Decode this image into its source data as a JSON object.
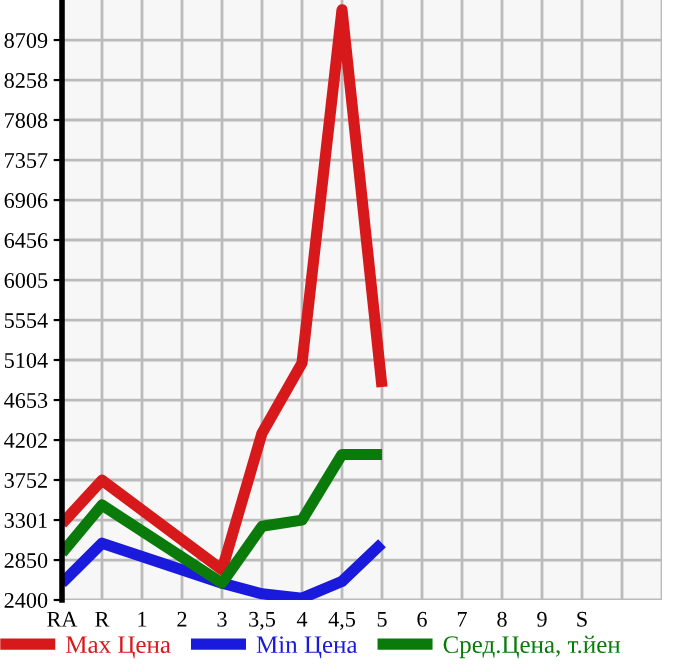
{
  "chart_data": {
    "type": "line",
    "categories": [
      "RA",
      "R",
      "1",
      "2",
      "3",
      "3,5",
      "4",
      "4,5",
      "5",
      "6",
      "7",
      "8",
      "9",
      "S",
      null,
      null
    ],
    "series": [
      {
        "name": "Max Цена",
        "color": "#d7191c",
        "values": [
          3260,
          3750,
          null,
          null,
          2740,
          4280,
          5070,
          9050,
          4800,
          null,
          null,
          null,
          null,
          null,
          null,
          null
        ]
      },
      {
        "name": "Min Цена",
        "color": "#1a1adc",
        "values": [
          2590,
          3040,
          null,
          null,
          2590,
          2470,
          2420,
          2610,
          3040,
          null,
          null,
          null,
          null,
          null,
          null,
          null
        ]
      },
      {
        "name": "Сред.Цена, т.йен",
        "color": "#0a7a0a",
        "values": [
          2930,
          3470,
          null,
          null,
          2590,
          3230,
          3300,
          4040,
          4040,
          null,
          null,
          null,
          null,
          null,
          null,
          null
        ]
      }
    ],
    "ylim": [
      2400,
      9160
    ],
    "yticks": [
      2400,
      2850,
      3301,
      3752,
      4202,
      4653,
      5104,
      5554,
      6005,
      6456,
      6906,
      7357,
      7808,
      8258,
      8709
    ],
    "grid": true,
    "legend": "bottom",
    "marker": "none",
    "line_style": "solid"
  }
}
